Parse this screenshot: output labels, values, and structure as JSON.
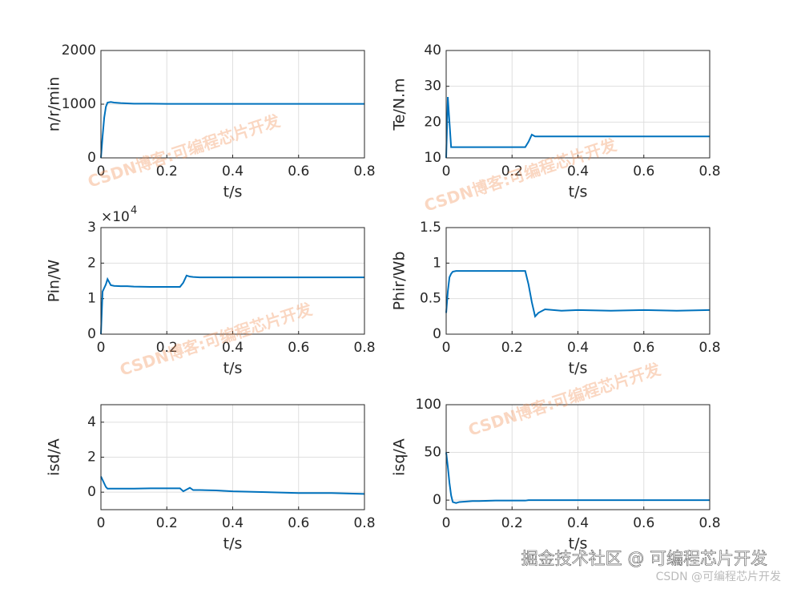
{
  "chart_data": [
    {
      "type": "line",
      "ylabel": "n/r/min",
      "xlabel": "t/s",
      "xlim": [
        0,
        0.8
      ],
      "xticks": [
        0,
        0.2,
        0.4,
        0.6,
        0.8
      ],
      "ylim": [
        0,
        2000
      ],
      "yticks": [
        0,
        1000,
        2000
      ],
      "grid": true,
      "x": [
        0,
        0.005,
        0.01,
        0.015,
        0.02,
        0.03,
        0.04,
        0.06,
        0.08,
        0.1,
        0.15,
        0.2,
        0.24,
        0.25,
        0.26,
        0.27,
        0.28,
        0.3,
        0.35,
        0.4,
        0.5,
        0.6,
        0.7,
        0.8
      ],
      "series": [
        {
          "color": "#0072bd",
          "values": [
            0,
            400,
            750,
            950,
            1030,
            1040,
            1030,
            1020,
            1015,
            1010,
            1010,
            1005,
            1005,
            1005,
            1005,
            1005,
            1005,
            1005,
            1005,
            1005,
            1005,
            1005,
            1005,
            1005
          ]
        }
      ]
    },
    {
      "type": "line",
      "ylabel": "Te/N.m",
      "xlabel": "t/s",
      "xlim": [
        0,
        0.8
      ],
      "xticks": [
        0,
        0.2,
        0.4,
        0.6,
        0.8
      ],
      "ylim": [
        10,
        40
      ],
      "yticks": [
        10,
        20,
        30,
        40
      ],
      "grid": true,
      "x": [
        0,
        0.005,
        0.01,
        0.015,
        0.02,
        0.03,
        0.04,
        0.06,
        0.08,
        0.1,
        0.15,
        0.2,
        0.24,
        0.25,
        0.26,
        0.27,
        0.28,
        0.3,
        0.35,
        0.4,
        0.5,
        0.6,
        0.7,
        0.8
      ],
      "series": [
        {
          "color": "#0072bd",
          "values": [
            10,
            27,
            20,
            13,
            13,
            13,
            13,
            13,
            13,
            13,
            13,
            13,
            13,
            14.5,
            16.5,
            16,
            16,
            16,
            16,
            16,
            16,
            16,
            16,
            16
          ]
        }
      ]
    },
    {
      "type": "line",
      "ylabel": "Pin/W",
      "xlabel": "t/s",
      "y_multiplier": "×10",
      "y_multiplier_exponent": "4",
      "xlim": [
        0,
        0.8
      ],
      "xticks": [
        0,
        0.2,
        0.4,
        0.6,
        0.8
      ],
      "ylim": [
        0,
        3
      ],
      "yticks": [
        0,
        1,
        2,
        3
      ],
      "grid": true,
      "x": [
        0,
        0.005,
        0.01,
        0.015,
        0.02,
        0.03,
        0.04,
        0.06,
        0.08,
        0.1,
        0.15,
        0.2,
        0.24,
        0.25,
        0.26,
        0.27,
        0.28,
        0.3,
        0.35,
        0.4,
        0.5,
        0.6,
        0.7,
        0.8
      ],
      "series": [
        {
          "color": "#0072bd",
          "values": [
            0,
            1.2,
            1.3,
            1.4,
            1.55,
            1.38,
            1.36,
            1.35,
            1.35,
            1.34,
            1.33,
            1.33,
            1.33,
            1.45,
            1.65,
            1.62,
            1.61,
            1.6,
            1.6,
            1.6,
            1.6,
            1.6,
            1.6,
            1.6
          ]
        }
      ]
    },
    {
      "type": "line",
      "ylabel": "Phir/Wb",
      "xlabel": "t/s",
      "xlim": [
        0,
        0.8
      ],
      "xticks": [
        0,
        0.2,
        0.4,
        0.6,
        0.8
      ],
      "ylim": [
        0,
        1.5
      ],
      "yticks": [
        0,
        0.5,
        1,
        1.5
      ],
      "grid": true,
      "x": [
        0,
        0.005,
        0.01,
        0.015,
        0.02,
        0.03,
        0.04,
        0.06,
        0.08,
        0.1,
        0.15,
        0.2,
        0.24,
        0.25,
        0.26,
        0.27,
        0.28,
        0.3,
        0.35,
        0.4,
        0.5,
        0.6,
        0.7,
        0.8
      ],
      "series": [
        {
          "color": "#0072bd",
          "values": [
            0.3,
            0.6,
            0.8,
            0.85,
            0.88,
            0.89,
            0.89,
            0.89,
            0.89,
            0.89,
            0.89,
            0.89,
            0.89,
            0.7,
            0.45,
            0.25,
            0.3,
            0.35,
            0.33,
            0.34,
            0.33,
            0.34,
            0.33,
            0.34
          ]
        }
      ]
    },
    {
      "type": "line",
      "ylabel": "isd/A",
      "xlabel": "t/s",
      "xlim": [
        0,
        0.8
      ],
      "xticks": [
        0,
        0.2,
        0.4,
        0.6,
        0.8
      ],
      "ylim": [
        -1,
        5
      ],
      "yticks": [
        0,
        2,
        4
      ],
      "grid": true,
      "x": [
        0,
        0.005,
        0.01,
        0.015,
        0.02,
        0.03,
        0.04,
        0.06,
        0.08,
        0.1,
        0.15,
        0.2,
        0.24,
        0.25,
        0.26,
        0.27,
        0.28,
        0.3,
        0.35,
        0.4,
        0.5,
        0.6,
        0.7,
        0.8
      ],
      "series": [
        {
          "color": "#0072bd",
          "values": [
            0.9,
            0.7,
            0.5,
            0.3,
            0.2,
            0.2,
            0.2,
            0.2,
            0.2,
            0.2,
            0.22,
            0.22,
            0.22,
            0.05,
            0.15,
            0.25,
            0.12,
            0.12,
            0.1,
            0.05,
            0,
            -0.05,
            -0.05,
            -0.1
          ]
        }
      ]
    },
    {
      "type": "line",
      "ylabel": "isq/A",
      "xlabel": "t/s",
      "xlim": [
        0,
        0.8
      ],
      "xticks": [
        0,
        0.2,
        0.4,
        0.6,
        0.8
      ],
      "ylim": [
        -10,
        100
      ],
      "yticks": [
        0,
        50,
        100
      ],
      "grid": true,
      "x": [
        0,
        0.005,
        0.01,
        0.015,
        0.02,
        0.03,
        0.04,
        0.06,
        0.08,
        0.1,
        0.15,
        0.2,
        0.24,
        0.25,
        0.26,
        0.27,
        0.28,
        0.3,
        0.35,
        0.4,
        0.5,
        0.6,
        0.7,
        0.8
      ],
      "series": [
        {
          "color": "#0072bd",
          "values": [
            50,
            35,
            18,
            5,
            -2,
            -3,
            -2,
            -1.5,
            -1,
            -1,
            -0.5,
            -0.5,
            -0.5,
            0,
            0,
            0,
            0,
            0,
            0,
            0,
            0,
            0,
            0,
            0
          ]
        }
      ]
    }
  ],
  "watermarks": [
    "CSDN博客:可编程芯片开发",
    "CSDN博客:可编程芯片开发",
    "CSDN博客:可编程芯片开发",
    "CSDN博客:可编程芯片开发"
  ],
  "footer": {
    "site": "掘金技术社区 @ 可编程芯片开发",
    "credit": "CSDN @可编程芯片开发"
  }
}
